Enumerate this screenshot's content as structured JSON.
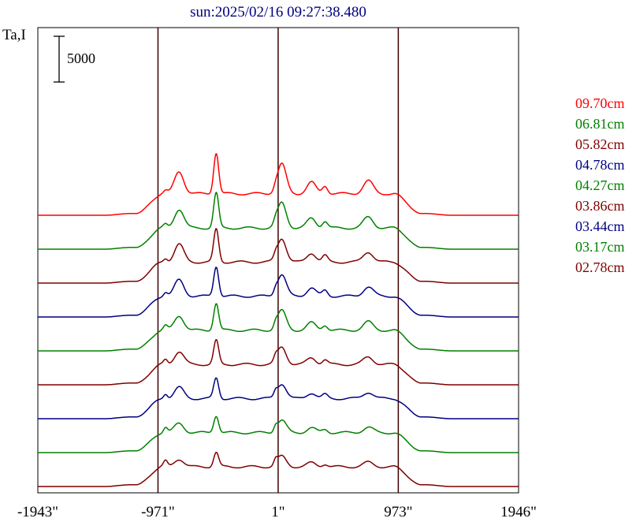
{
  "chart_data": {
    "type": "line",
    "title": "sun:2025/02/16 09:27:38.480",
    "ylabel": "Ta,I",
    "xlabel": "",
    "scale_bar": {
      "label": "5000",
      "value": 5000
    },
    "xlim": [
      -1943,
      1946
    ],
    "x_ticks": [
      {
        "value": -1943,
        "label": "-1943\""
      },
      {
        "value": -971,
        "label": "-971\""
      },
      {
        "value": 1,
        "label": "1\""
      },
      {
        "value": 973,
        "label": "973\""
      },
      {
        "value": 1946,
        "label": "1946\""
      }
    ],
    "marker_lines": [
      -971,
      1,
      973
    ],
    "grid": false,
    "legend_position": "right",
    "series": [
      {
        "name": "09.70cm",
        "color": "#ff0000",
        "baseline": 0,
        "mag": 1.0
      },
      {
        "name": "06.81cm",
        "color": "#008000",
        "baseline": 1,
        "mag": 0.85
      },
      {
        "name": "05.82cm",
        "color": "#800000",
        "baseline": 2,
        "mag": 0.8
      },
      {
        "name": "04.78cm",
        "color": "#000080",
        "baseline": 3,
        "mag": 0.73
      },
      {
        "name": "04.27cm",
        "color": "#008000",
        "baseline": 4,
        "mag": 0.66
      },
      {
        "name": "03.86cm",
        "color": "#800000",
        "baseline": 5,
        "mag": 0.58
      },
      {
        "name": "03.44cm",
        "color": "#000080",
        "baseline": 6,
        "mag": 0.5
      },
      {
        "name": "03.17cm",
        "color": "#008000",
        "baseline": 7,
        "mag": 0.42
      },
      {
        "name": "02.78cm",
        "color": "#800000",
        "baseline": 8,
        "mag": 0.35
      }
    ]
  }
}
